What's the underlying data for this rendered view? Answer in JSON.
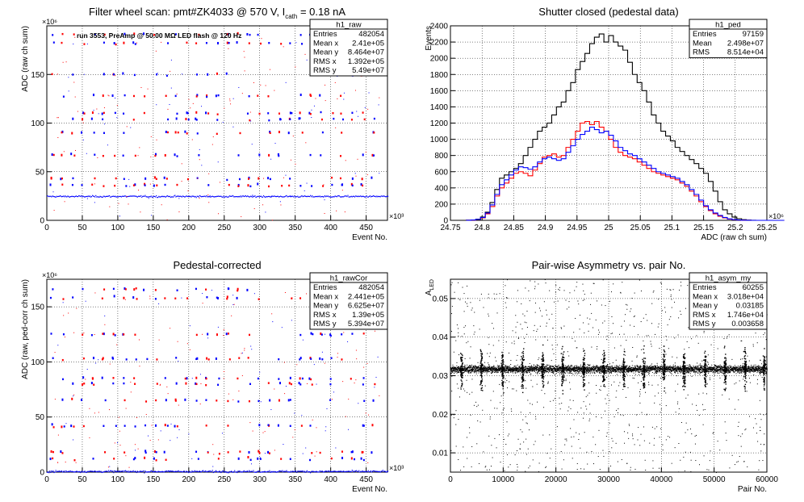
{
  "chart_data": [
    {
      "type": "scatter",
      "title": "Filter wheel scan: pmt#ZK4033 @   570 V, I",
      "title_sub": "cath",
      "title_tail": " = 0.18 nA",
      "annotation": "run 3553, PreAmp @ 50.00 MΩ LED flash @  120 Hz",
      "xlabel": "Event No.",
      "ylabel": "ADC (raw ch sum)",
      "x_exponent": "×10³",
      "y_exponent": "×10⁶",
      "xlim": [
        0,
        480
      ],
      "ylim": [
        0,
        200
      ],
      "xticks": [
        0,
        50,
        100,
        150,
        200,
        250,
        300,
        350,
        400,
        450
      ],
      "yticks": [
        0,
        50,
        100,
        150
      ],
      "grid": true,
      "stats": {
        "name": "h1_raw",
        "rows": [
          {
            "label": "Entries",
            "value": "482054"
          },
          {
            "label": "Mean x",
            "value": "2.41e+05"
          },
          {
            "label": "Mean y",
            "value": "8.464e+07"
          },
          {
            "label": "RMS x",
            "value": "1.392e+05"
          },
          {
            "label": "RMS y",
            "value": "5.49e+07"
          }
        ]
      },
      "pedestal_level": 25,
      "levels": [
        36,
        43,
        67,
        90,
        104,
        110,
        128,
        150,
        182,
        191
      ],
      "colors": {
        "primary": "#0000ff",
        "secondary": "#ff0000",
        "pedestal": "#0000ff"
      }
    },
    {
      "type": "histogram",
      "title": "Shutter closed (pedestal data)",
      "xlabel": "ADC (raw ch sum)",
      "ylabel": "Events",
      "x_exponent": "×10⁶",
      "xlim": [
        24.75,
        25.25
      ],
      "ylim": [
        0,
        2400
      ],
      "xticks": [
        24.75,
        24.8,
        24.85,
        24.9,
        24.95,
        25,
        25.05,
        25.1,
        25.15,
        25.2,
        25.25
      ],
      "yticks": [
        0,
        200,
        400,
        600,
        800,
        1000,
        1200,
        1400,
        1600,
        1800,
        2000,
        2200,
        2400
      ],
      "grid": true,
      "stats": {
        "name": "h1_ped",
        "rows": [
          {
            "label": "Entries",
            "value": "97159"
          },
          {
            "label": "Mean",
            "value": "2.498e+07"
          },
          {
            "label": "RMS",
            "value": "8.514e+04"
          }
        ]
      },
      "bin_start": 24.775,
      "bin_width": 0.0075,
      "series": [
        {
          "color": "#000000",
          "values": [
            2,
            5,
            15,
            40,
            100,
            220,
            380,
            520,
            560,
            600,
            640,
            700,
            800,
            900,
            1000,
            1100,
            1150,
            1200,
            1300,
            1400,
            1460,
            1600,
            1700,
            1860,
            1960,
            2060,
            2180,
            2260,
            2300,
            2200,
            2280,
            2200,
            2150,
            2100,
            1950,
            1800,
            1700,
            1600,
            1460,
            1300,
            1200,
            1100,
            1040,
            980,
            900,
            850,
            800,
            750,
            700,
            640,
            580,
            480,
            360,
            230,
            130,
            80,
            40,
            20,
            8,
            3,
            1,
            0,
            0,
            0,
            0,
            0,
            0
          ]
        },
        {
          "color": "#ff0000",
          "values": [
            1,
            3,
            10,
            30,
            80,
            170,
            300,
            400,
            460,
            520,
            580,
            600,
            580,
            550,
            620,
            700,
            780,
            800,
            820,
            780,
            800,
            900,
            1000,
            1100,
            1200,
            1220,
            1180,
            1220,
            1150,
            1100,
            1000,
            900,
            840,
            800,
            780,
            760,
            720,
            680,
            640,
            600,
            580,
            560,
            540,
            520,
            500,
            460,
            420,
            360,
            300,
            230,
            170,
            120,
            80,
            50,
            30,
            15,
            8,
            4,
            2,
            1,
            0,
            0,
            0,
            0,
            0,
            0,
            0
          ]
        },
        {
          "color": "#0000ff",
          "values": [
            1,
            4,
            12,
            35,
            90,
            190,
            320,
            440,
            500,
            560,
            620,
            660,
            650,
            630,
            660,
            720,
            760,
            780,
            760,
            740,
            760,
            840,
            920,
            1000,
            1060,
            1100,
            1150,
            1120,
            1080,
            1100,
            1050,
            980,
            900,
            860,
            820,
            800,
            760,
            720,
            680,
            640,
            600,
            580,
            560,
            540,
            520,
            480,
            440,
            380,
            320,
            250,
            180,
            130,
            90,
            60,
            35,
            18,
            9,
            4,
            2,
            1,
            0,
            0,
            0,
            0,
            0,
            0,
            0
          ]
        }
      ]
    },
    {
      "type": "scatter",
      "title": "Pedestal-corrected",
      "xlabel": "Event No.",
      "ylabel": "ADC (raw, ped-corr ch sum)",
      "x_exponent": "×10³",
      "y_exponent": "×10⁶",
      "xlim": [
        0,
        480
      ],
      "ylim": [
        0,
        175
      ],
      "xticks": [
        0,
        50,
        100,
        150,
        200,
        250,
        300,
        350,
        400,
        450
      ],
      "yticks": [
        0,
        50,
        100,
        150
      ],
      "grid": true,
      "stats": {
        "name": "h1_rawCor",
        "rows": [
          {
            "label": "Entries",
            "value": "482054"
          },
          {
            "label": "Mean x",
            "value": "2.441e+05"
          },
          {
            "label": "Mean y",
            "value": "6.625e+07"
          },
          {
            "label": "RMS x",
            "value": "1.39e+05"
          },
          {
            "label": "RMS y",
            "value": "5.394e+07"
          }
        ]
      },
      "pedestal_level": 1,
      "levels": [
        12,
        18,
        42,
        65,
        80,
        85,
        103,
        125,
        158,
        166
      ],
      "colors": {
        "primary": "#0000ff",
        "secondary": "#ff0000",
        "pedestal": "#0000ff"
      }
    },
    {
      "type": "scatter",
      "title": "Pair-wise Asymmetry vs. pair No.",
      "xlabel": "Pair No.",
      "ylabel": "A",
      "ylabel_sub": "LED",
      "xlim": [
        0,
        60000
      ],
      "ylim": [
        0.005,
        0.055
      ],
      "xticks": [
        0,
        10000,
        20000,
        30000,
        40000,
        50000,
        60000
      ],
      "yticks": [
        0.01,
        0.02,
        0.03,
        0.04,
        0.05
      ],
      "grid": true,
      "stats": {
        "name": "h1_asym_my",
        "rows": [
          {
            "label": "Entries",
            "value": "60255"
          },
          {
            "label": "Mean x",
            "value": "3.018e+04"
          },
          {
            "label": "Mean y",
            "value": "0.03185"
          },
          {
            "label": "RMS x",
            "value": "1.746e+04"
          },
          {
            "label": "RMS y",
            "value": "0.003658"
          }
        ]
      },
      "band_center": 0.0318,
      "band_halfwidth": 0.0008,
      "spike_x": [
        2000,
        5800,
        9800,
        13600,
        17400,
        21200,
        25200,
        29000,
        32800,
        36600,
        40400,
        44200,
        48200,
        52000,
        55800,
        59400
      ],
      "colors": {
        "primary": "#000000"
      }
    }
  ]
}
